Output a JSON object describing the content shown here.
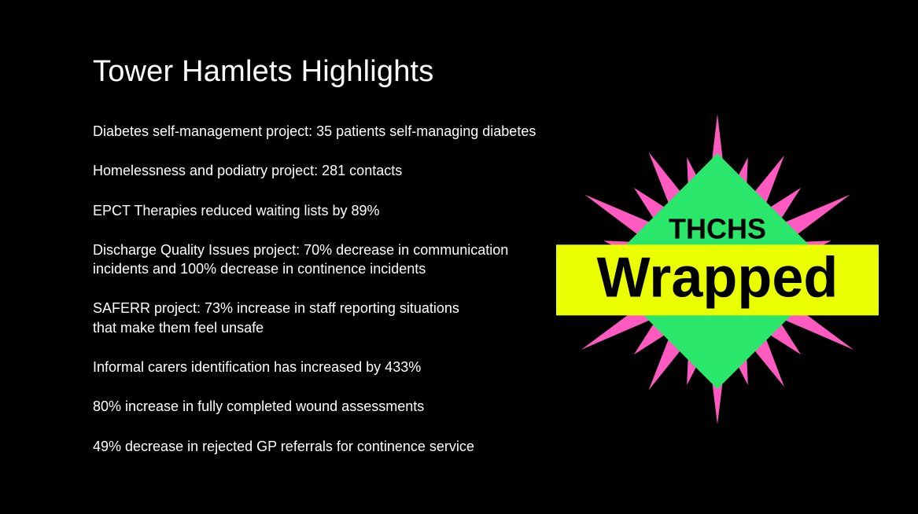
{
  "title": "Tower Hamlets Highlights",
  "bullets": [
    "Diabetes self-management project: 35 patients self-managing diabetes",
    "Homelessness and podiatry project: 281 contacts",
    "EPCT Therapies reduced waiting lists by 89%",
    "Discharge Quality Issues project: 70% decrease in communication incidents and 100% decrease in continence incidents",
    "SAFERR project: 73% increase in staff reporting situations\nthat make them feel unsafe",
    "Informal carers identification has increased by 433%",
    "80% increase in fully completed wound assessments",
    "49% decrease in rejected GP referrals for continence service"
  ],
  "badge": {
    "top_text": "THCHS",
    "banner_text": "Wrapped",
    "starburst_color": "#ff5ac0",
    "diamond_color": "#2ae66b",
    "banner_bg": "#eaff00",
    "text_color": "#000000"
  },
  "colors": {
    "background": "#000000",
    "text": "#ffffff"
  }
}
